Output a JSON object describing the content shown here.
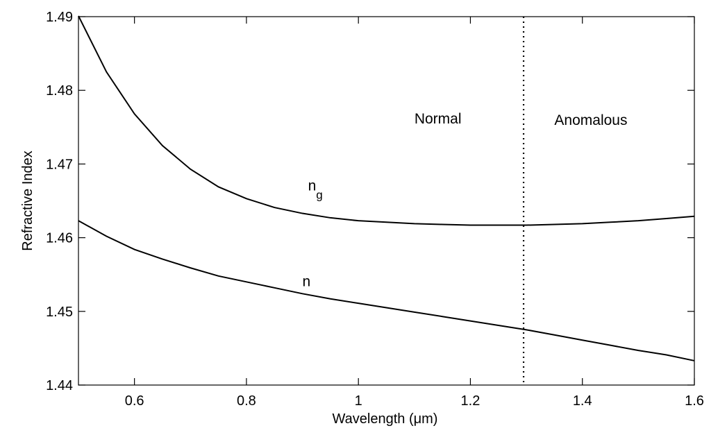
{
  "chart_data": {
    "type": "line",
    "title": "",
    "xlabel": "Wavelength (μm)",
    "ylabel": "Refractive Index",
    "xlim": [
      0.5,
      1.6
    ],
    "ylim": [
      1.44,
      1.49
    ],
    "xticks": [
      0.6,
      0.8,
      1,
      1.2,
      1.4,
      1.6
    ],
    "xtick_labels": [
      "0.6",
      "0.8",
      "1",
      "1.2",
      "1.4",
      "1.6"
    ],
    "yticks": [
      1.44,
      1.45,
      1.46,
      1.47,
      1.48,
      1.49
    ],
    "ytick_labels": [
      "1.44",
      "1.45",
      "1.46",
      "1.47",
      "1.48",
      "1.49"
    ],
    "grid": false,
    "legend": "none",
    "series": [
      {
        "name": "n_g",
        "x": [
          0.5,
          0.55,
          0.6,
          0.65,
          0.7,
          0.75,
          0.8,
          0.85,
          0.9,
          0.95,
          1.0,
          1.05,
          1.1,
          1.15,
          1.2,
          1.25,
          1.3,
          1.35,
          1.4,
          1.45,
          1.5,
          1.55,
          1.6
        ],
        "y": [
          1.4901,
          1.4825,
          1.4768,
          1.4725,
          1.4693,
          1.4669,
          1.4653,
          1.4641,
          1.4633,
          1.4627,
          1.4623,
          1.4621,
          1.4619,
          1.4618,
          1.4617,
          1.4617,
          1.4617,
          1.4618,
          1.4619,
          1.4621,
          1.4623,
          1.4626,
          1.4629
        ]
      },
      {
        "name": "n",
        "x": [
          0.5,
          0.55,
          0.6,
          0.65,
          0.7,
          0.75,
          0.8,
          0.85,
          0.9,
          0.95,
          1.0,
          1.05,
          1.1,
          1.15,
          1.2,
          1.25,
          1.3,
          1.35,
          1.4,
          1.45,
          1.5,
          1.55,
          1.6
        ],
        "y": [
          1.4623,
          1.4602,
          1.4584,
          1.4571,
          1.4559,
          1.4548,
          1.454,
          1.4532,
          1.4524,
          1.4517,
          1.4511,
          1.4505,
          1.4499,
          1.4493,
          1.4487,
          1.4481,
          1.4475,
          1.4468,
          1.4461,
          1.4454,
          1.4447,
          1.4441,
          1.4433
        ]
      }
    ],
    "vertical_line": {
      "x": 1.295,
      "style": "dotted"
    },
    "annotations": [
      {
        "text": "Normal",
        "x": 1.1,
        "y": 1.4755
      },
      {
        "text": "Anomalous",
        "x": 1.35,
        "y": 1.4753
      },
      {
        "text": "n",
        "sub": "g",
        "x": 0.91,
        "y": 1.4664
      },
      {
        "text": "n",
        "x": 0.9,
        "y": 1.4534
      }
    ]
  }
}
